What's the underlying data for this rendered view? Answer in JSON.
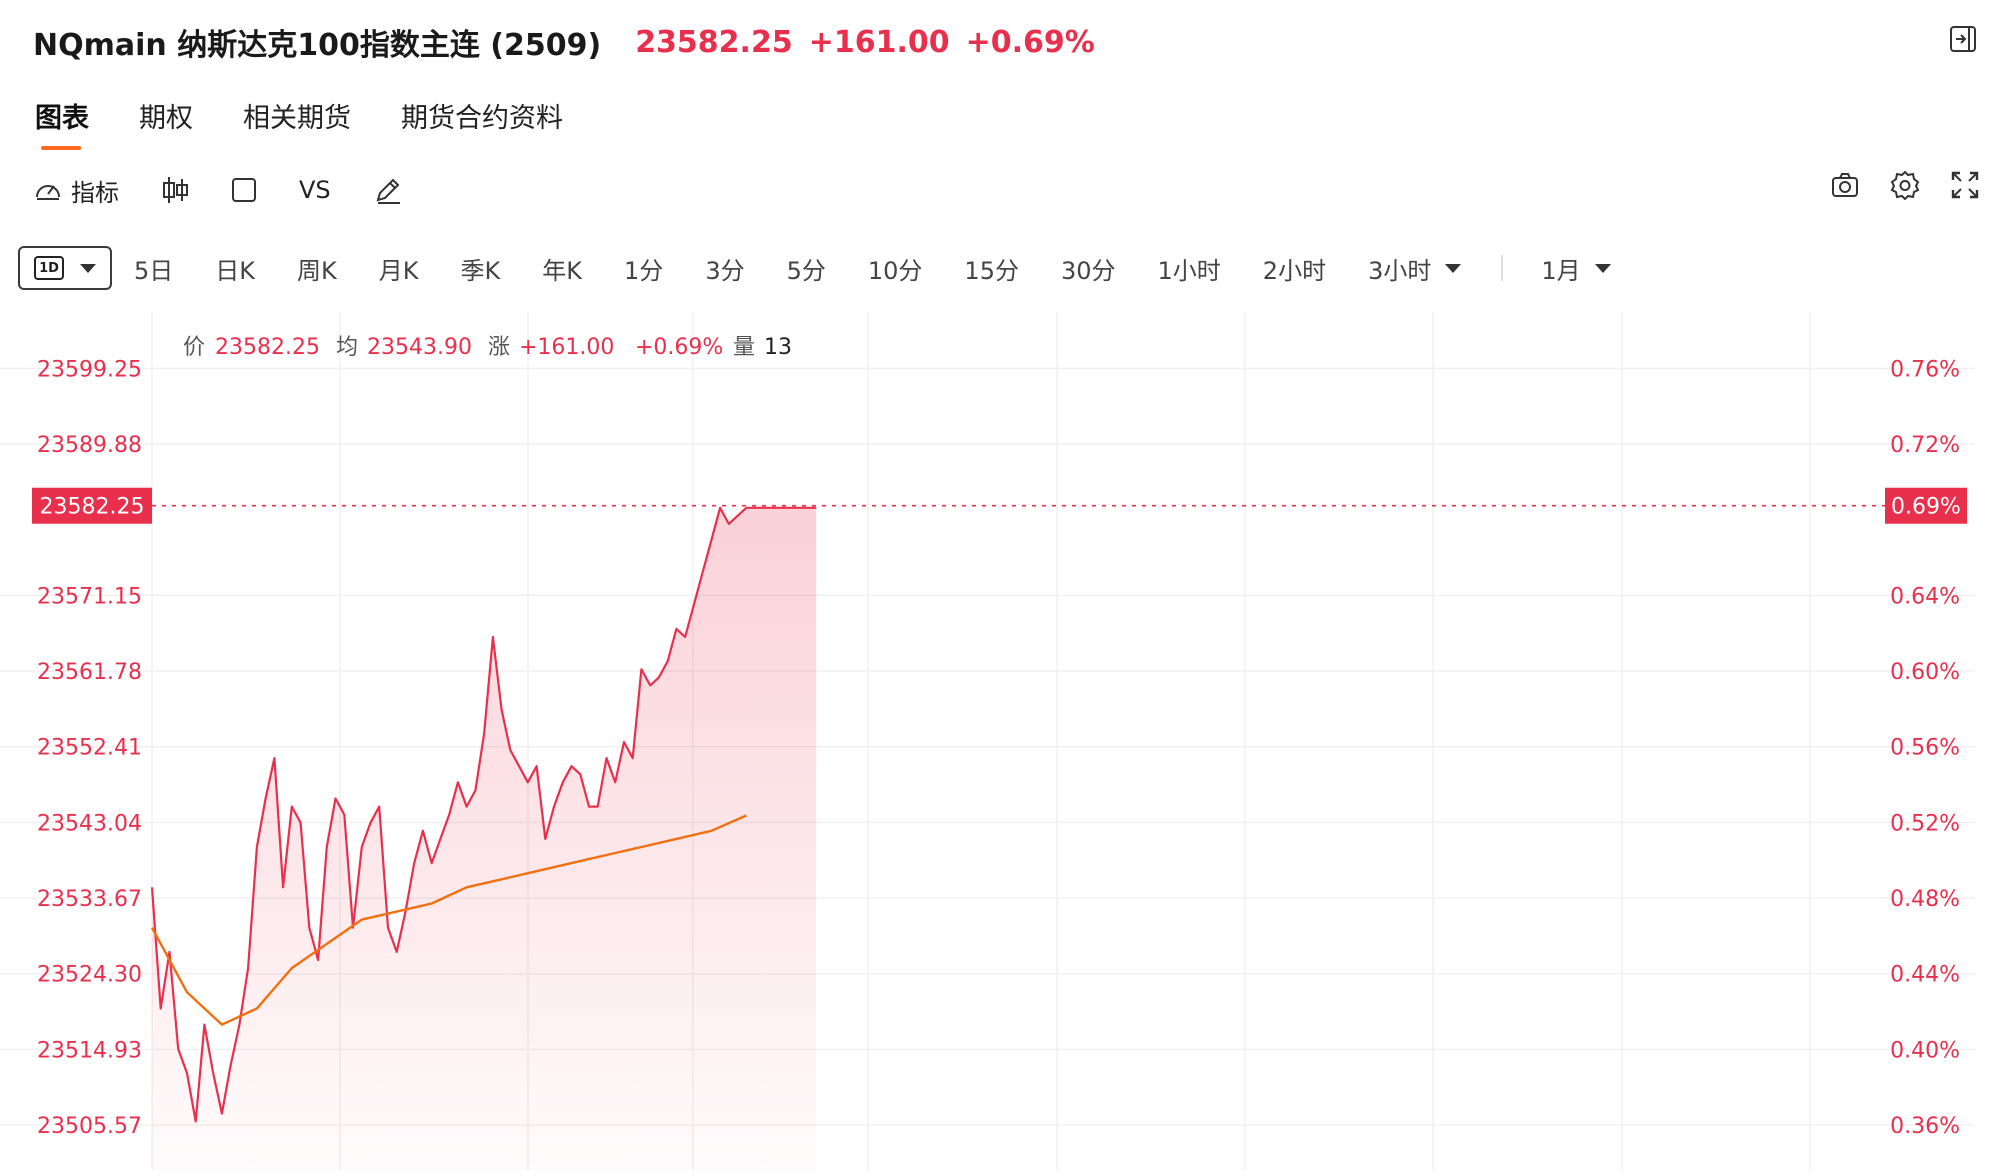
{
  "header": {
    "title": "NQmain 纳斯达克100指数主连 (2509)",
    "price": "23582.25",
    "change": "+161.00",
    "change_pct": "+0.69%",
    "collapse_icon": "collapse-right-icon"
  },
  "tabs": [
    {
      "label": "图表",
      "active": true
    },
    {
      "label": "期权",
      "active": false
    },
    {
      "label": "相关期货",
      "active": false
    },
    {
      "label": "期货合约资料",
      "active": false
    }
  ],
  "toolbar": {
    "indicator_label": "指标",
    "vs_label": "VS",
    "icons_left": [
      "gauge-icon",
      "candlestick-icon",
      "square-icon",
      "pencil-icon"
    ],
    "icons_right": [
      "camera-icon",
      "settings-icon",
      "fullscreen-icon"
    ]
  },
  "periods": {
    "selected_badge": "1D",
    "items": [
      "5日",
      "日K",
      "周K",
      "月K",
      "季K",
      "年K",
      "1分",
      "3分",
      "5分",
      "10分",
      "15分",
      "30分",
      "1小时",
      "2小时",
      "3小时"
    ],
    "range": "1月"
  },
  "info_bar": {
    "price_label": "价",
    "price_value": "23582.25",
    "avg_label": "均",
    "avg_value": "23543.90",
    "change_label": "涨",
    "change_value": "+161.00",
    "change_pct": "+0.69%",
    "volume_label": "量",
    "volume_value": "13"
  },
  "colors": {
    "up": "#e8304c",
    "avg_line": "#f07010",
    "tab_accent": "#ff6a1a",
    "grid": "#f0f0f0"
  },
  "chart_data": {
    "type": "line",
    "y_left_ticks": [
      "23599.25",
      "23589.88",
      "23571.15",
      "23561.78",
      "23552.41",
      "23543.04",
      "23533.67",
      "23524.30",
      "23514.93",
      "23505.57"
    ],
    "y_right_ticks": [
      "0.76%",
      "0.72%",
      "0.64%",
      "0.60%",
      "0.56%",
      "0.52%",
      "0.48%",
      "0.44%",
      "0.40%",
      "0.36%"
    ],
    "current_price_tag": "23582.25",
    "current_pct_tag": "0.69%",
    "ylim": [
      23500,
      23605
    ],
    "x_range": [
      0,
      1
    ],
    "series": [
      {
        "name": "价",
        "x": [
          0,
          0.005,
          0.01,
          0.015,
          0.02,
          0.025,
          0.03,
          0.035,
          0.04,
          0.045,
          0.05,
          0.055,
          0.06,
          0.065,
          0.07,
          0.075,
          0.08,
          0.085,
          0.09,
          0.095,
          0.1,
          0.105,
          0.11,
          0.115,
          0.12,
          0.125,
          0.13,
          0.135,
          0.14,
          0.145,
          0.15,
          0.155,
          0.16,
          0.165,
          0.17,
          0.175,
          0.18,
          0.185,
          0.19,
          0.195,
          0.2,
          0.205,
          0.21,
          0.215,
          0.22,
          0.225,
          0.23,
          0.235,
          0.24,
          0.245,
          0.25,
          0.255,
          0.26,
          0.265,
          0.27,
          0.275,
          0.28,
          0.285,
          0.29,
          0.295,
          0.3,
          0.305,
          0.31,
          0.315,
          0.32,
          0.325,
          0.33,
          0.335,
          0.34,
          0.345,
          0.35,
          0.355,
          0.36,
          0.365,
          0.37,
          0.375,
          0.38
        ],
        "values": [
          23535,
          23520,
          23527,
          23515,
          23512,
          23506,
          23518,
          23512,
          23507,
          23513,
          23518,
          23525,
          23540,
          23546,
          23551,
          23535,
          23545,
          23543,
          23530,
          23526,
          23540,
          23546,
          23544,
          23530,
          23540,
          23543,
          23545,
          23530,
          23527,
          23532,
          23538,
          23542,
          23538,
          23541,
          23544,
          23548,
          23545,
          23547,
          23554,
          23566,
          23557,
          23552,
          23550,
          23548,
          23550,
          23541,
          23545,
          23548,
          23550,
          23549,
          23545,
          23545,
          23551,
          23548,
          23553,
          23551,
          23562,
          23560,
          23561,
          23563,
          23567,
          23566,
          23570,
          23574,
          23578,
          23582,
          23580,
          23581,
          23582,
          23582,
          23582,
          23582,
          23582,
          23582,
          23582,
          23582,
          23582
        ]
      },
      {
        "name": "均",
        "x": [
          0,
          0.02,
          0.04,
          0.06,
          0.08,
          0.1,
          0.12,
          0.14,
          0.16,
          0.18,
          0.2,
          0.22,
          0.24,
          0.26,
          0.28,
          0.3,
          0.32,
          0.34
        ],
        "values": [
          23530,
          23522,
          23518,
          23520,
          23525,
          23528,
          23531,
          23532,
          23533,
          23535,
          23536,
          23537,
          23538,
          23539,
          23540,
          23541,
          23542,
          23543.9
        ]
      }
    ]
  }
}
